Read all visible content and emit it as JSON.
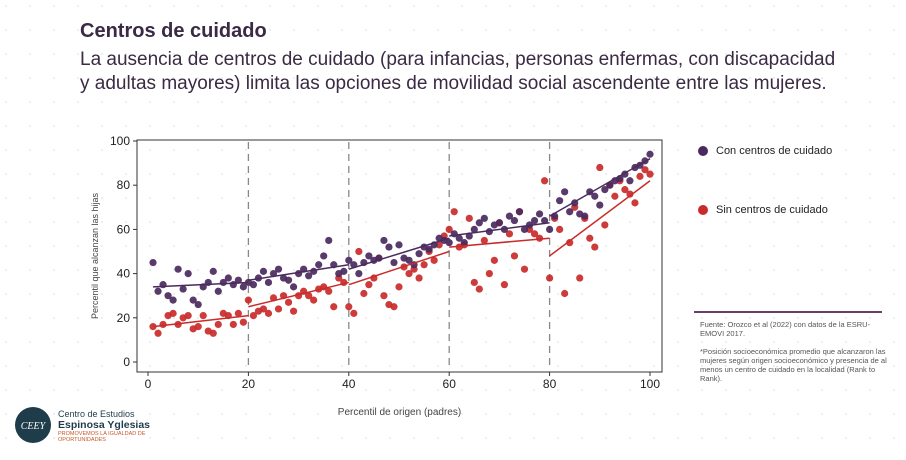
{
  "header": {
    "title": "Centros de cuidado",
    "subtitle": "La ausencia de centros de cuidado (para infancias, personas enfermas, con discapacidad y adultas mayores) limita las opciones de movilidad social ascendente entre las mujeres."
  },
  "notes": {
    "source": "Fuente: Orozco et al (2022) con datos de la ESRU-EMOVI 2017.",
    "footnote": "*Posición socioeconómica promedio que alcanzaron las mujeres según origen socioeconómico y presencia de al menos un centro de cuidado en la localidad (Rank to Rank)."
  },
  "org": {
    "line1": "Centro de Estudios",
    "line2": "Espinosa Yglesias",
    "line3": "PROMOVEMOS LA IGUALDAD DE OPORTUNIDADES",
    "logo_text": "CEEY"
  },
  "chart_data": {
    "type": "scatter",
    "title": "",
    "xlabel": "Percentil de origen (padres)",
    "ylabel": "Percentil que alcanzan las hijas",
    "xlim": [
      0,
      100
    ],
    "ylim": [
      0,
      100
    ],
    "xticks": [
      0,
      20,
      40,
      60,
      80,
      100
    ],
    "yticks": [
      0,
      20,
      40,
      60,
      80,
      100
    ],
    "vlines": [
      20,
      40,
      60,
      80
    ],
    "legend_position": "right",
    "grid": false,
    "series": [
      {
        "name": "Con centros de cuidado",
        "color": "#4a2a5e",
        "x": [
          1,
          2,
          3,
          4,
          5,
          6,
          7,
          8,
          9,
          10,
          11,
          12,
          13,
          14,
          15,
          16,
          17,
          18,
          19,
          20,
          21,
          22,
          23,
          24,
          25,
          26,
          27,
          28,
          29,
          30,
          31,
          32,
          33,
          34,
          35,
          36,
          37,
          38,
          39,
          40,
          41,
          42,
          43,
          44,
          45,
          46,
          47,
          48,
          49,
          50,
          51,
          52,
          53,
          54,
          55,
          56,
          57,
          58,
          59,
          60,
          61,
          62,
          63,
          64,
          65,
          66,
          67,
          68,
          69,
          70,
          71,
          72,
          73,
          74,
          75,
          76,
          77,
          78,
          79,
          80,
          81,
          82,
          83,
          84,
          85,
          86,
          87,
          88,
          89,
          90,
          91,
          92,
          93,
          94,
          95,
          96,
          97,
          98,
          99,
          100
        ],
        "y": [
          45,
          32,
          35,
          30,
          28,
          42,
          33,
          40,
          28,
          26,
          34,
          36,
          41,
          32,
          36,
          38,
          35,
          37,
          34,
          36,
          35,
          38,
          41,
          36,
          40,
          42,
          38,
          37,
          34,
          40,
          42,
          39,
          41,
          44,
          48,
          55,
          44,
          40,
          41,
          46,
          44,
          40,
          45,
          48,
          46,
          47,
          55,
          52,
          45,
          53,
          47,
          46,
          44,
          49,
          52,
          51,
          53,
          56,
          55,
          54,
          58,
          56,
          54,
          57,
          60,
          63,
          65,
          59,
          62,
          63,
          60,
          66,
          64,
          68,
          60,
          62,
          64,
          67,
          64,
          60,
          66,
          73,
          77,
          68,
          72,
          67,
          66,
          77,
          75,
          71,
          78,
          80,
          82,
          83,
          85,
          82,
          88,
          89,
          91,
          94
        ]
      },
      {
        "name": "Sin centros de cuidado",
        "color": "#c92a2a",
        "x": [
          1,
          2,
          3,
          4,
          5,
          6,
          7,
          8,
          9,
          10,
          11,
          12,
          13,
          14,
          15,
          16,
          17,
          18,
          19,
          20,
          21,
          22,
          23,
          24,
          25,
          26,
          27,
          28,
          29,
          30,
          31,
          32,
          33,
          34,
          35,
          36,
          37,
          38,
          39,
          40,
          41,
          42,
          43,
          44,
          45,
          46,
          47,
          48,
          49,
          50,
          51,
          52,
          53,
          54,
          55,
          56,
          57,
          58,
          59,
          60,
          61,
          62,
          63,
          64,
          65,
          66,
          67,
          68,
          69,
          70,
          71,
          72,
          73,
          74,
          75,
          76,
          77,
          78,
          79,
          80,
          81,
          82,
          83,
          84,
          85,
          86,
          87,
          88,
          89,
          90,
          91,
          92,
          93,
          94,
          95,
          96,
          97,
          98,
          99,
          100
        ],
        "y": [
          16,
          13,
          17,
          21,
          22,
          17,
          20,
          21,
          15,
          16,
          21,
          14,
          13,
          17,
          22,
          21,
          17,
          22,
          18,
          28,
          21,
          23,
          24,
          22,
          29,
          24,
          30,
          27,
          23,
          30,
          32,
          30,
          28,
          33,
          34,
          32,
          25,
          38,
          36,
          25,
          22,
          50,
          31,
          35,
          38,
          47,
          30,
          26,
          25,
          34,
          43,
          40,
          42,
          38,
          44,
          50,
          46,
          53,
          57,
          60,
          68,
          52,
          53,
          65,
          36,
          33,
          55,
          40,
          46,
          63,
          35,
          58,
          48,
          68,
          42,
          60,
          58,
          56,
          82,
          38,
          65,
          60,
          31,
          54,
          70,
          38,
          65,
          56,
          52,
          88,
          62,
          80,
          75,
          82,
          78,
          76,
          72,
          84,
          87,
          85
        ]
      }
    ],
    "fit_lines": [
      {
        "series": "Con centros de cuidado",
        "segments": [
          [
            1,
            34,
            20,
            36
          ],
          [
            20,
            37,
            40,
            44
          ],
          [
            40,
            42,
            60,
            56
          ],
          [
            60,
            57,
            80,
            63
          ],
          [
            80,
            66,
            100,
            92
          ]
        ]
      },
      {
        "series": "Sin centros de cuidado",
        "segments": [
          [
            1,
            16,
            20,
            21
          ],
          [
            20,
            25,
            40,
            36
          ],
          [
            40,
            35,
            60,
            50
          ],
          [
            60,
            52,
            80,
            56
          ],
          [
            80,
            48,
            100,
            82
          ]
        ]
      }
    ]
  }
}
